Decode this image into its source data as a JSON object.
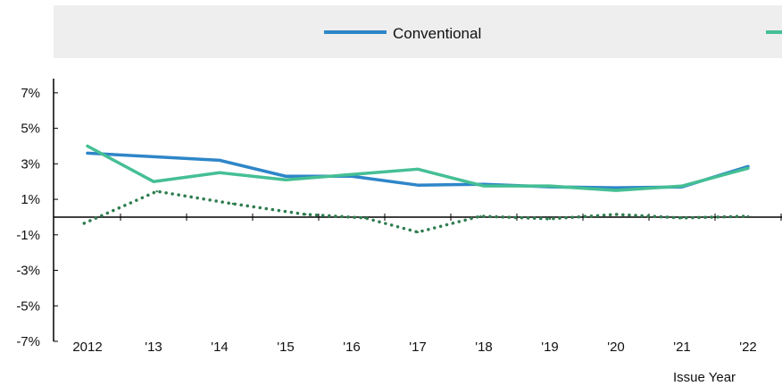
{
  "colors": {
    "conventional": "#2e86c8",
    "series2": "#45bf94",
    "difference": "#2f7d4f",
    "legend_bg": "#eeeeee",
    "axis": "#000000"
  },
  "chart_data": {
    "type": "line",
    "xlabel": "Issue Year",
    "ylabel": "",
    "categories": [
      "2012",
      "'13",
      "'14",
      "'15",
      "'16",
      "'17",
      "'18",
      "'19",
      "'20",
      "'21",
      "'22"
    ],
    "ylim": [
      -7,
      7.8
    ],
    "y_ticks": [
      7,
      5,
      3,
      1,
      -1,
      -3,
      -5,
      -7
    ],
    "y_tick_labels": [
      "7%",
      "5%",
      "3%",
      "1%",
      "-1%",
      "-3%",
      "-5%",
      "-7%"
    ],
    "legend": {
      "placement": "top",
      "entries": [
        "Conventional"
      ]
    },
    "grid": false,
    "series": [
      {
        "name": "Conventional",
        "style": "solid",
        "x": [
          0,
          1,
          2,
          3,
          4,
          5,
          6,
          7,
          8,
          9,
          10
        ],
        "values": [
          3.6,
          3.4,
          3.2,
          2.3,
          2.3,
          1.8,
          1.85,
          1.7,
          1.65,
          1.7,
          2.85
        ]
      },
      {
        "style": "solid",
        "x": [
          0,
          1,
          2,
          3,
          4,
          5,
          6,
          7,
          8,
          9,
          10
        ],
        "values": [
          4.0,
          2.0,
          2.5,
          2.1,
          2.4,
          2.7,
          1.75,
          1.75,
          1.5,
          1.75,
          2.75
        ]
      },
      {
        "style": "dotted",
        "x": [
          -0.05,
          1.05,
          2.2,
          3.3,
          4.2,
          5.0,
          5.95,
          7.0,
          8.0,
          9.0,
          10.0
        ],
        "values": [
          -0.35,
          1.45,
          0.75,
          0.15,
          -0.05,
          -0.85,
          0.05,
          -0.1,
          0.15,
          -0.05,
          0.05
        ]
      }
    ]
  }
}
